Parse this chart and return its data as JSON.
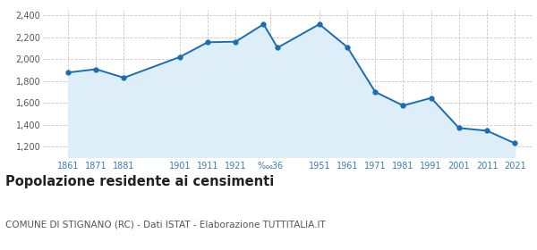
{
  "years": [
    1861,
    1871,
    1881,
    1901,
    1911,
    1921,
    1931,
    1936,
    1951,
    1961,
    1971,
    1981,
    1991,
    2001,
    2011,
    2021
  ],
  "population": [
    1878,
    1908,
    1830,
    2020,
    2155,
    2160,
    2320,
    2105,
    2320,
    2110,
    1700,
    1575,
    1645,
    1370,
    1345,
    1230
  ],
  "x_tick_positions": [
    1861,
    1871,
    1881,
    1901,
    1911,
    1921,
    1933.5,
    1951,
    1961,
    1971,
    1981,
    1991,
    2001,
    2011,
    2021
  ],
  "x_tick_labels": [
    "1861",
    "1871",
    "1881",
    "1901",
    "1911",
    "1921",
    "‱36",
    "1951",
    "1961",
    "1971",
    "1981",
    "1991",
    "2001",
    "2011",
    "2021"
  ],
  "line_color": "#1a6db5",
  "fill_color": "#ddeef8",
  "marker_color": "#1a6db5",
  "background_color": "#ffffff",
  "grid_color": "#c8c8c8",
  "ylim": [
    1100,
    2450
  ],
  "yticks": [
    1200,
    1400,
    1600,
    1800,
    2000,
    2200,
    2400
  ],
  "xlim": [
    1852,
    2027
  ],
  "title": "Popolazione residente ai censimenti",
  "subtitle": "COMUNE DI STIGNANO (RC) - Dati ISTAT - Elaborazione TUTTITALIA.IT",
  "title_fontsize": 10.5,
  "subtitle_fontsize": 7.5,
  "title_color": "#222222",
  "subtitle_color": "#555555",
  "tick_label_color": "#3a7abf",
  "tick_fontsize": 7,
  "ytick_color": "#555555"
}
